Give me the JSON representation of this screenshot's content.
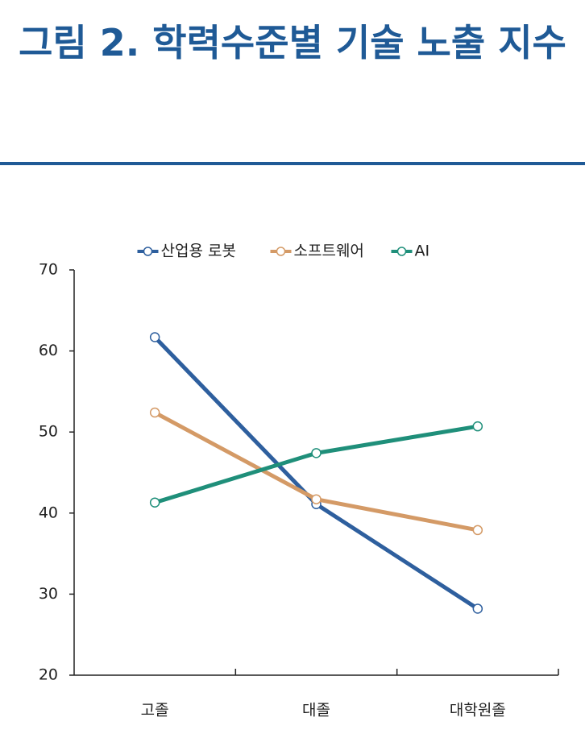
{
  "chart_data": {
    "type": "line",
    "title": "그림 2. 학력수준별 기술 노출 지수",
    "categories": [
      "고졸",
      "대졸",
      "대학원졸"
    ],
    "series": [
      {
        "name": "산업용 로봇",
        "color": "#2e5f9e",
        "values": [
          61.7,
          41.1,
          28.2
        ]
      },
      {
        "name": "소프트웨어",
        "color": "#d49a66",
        "values": [
          52.4,
          41.7,
          37.9
        ]
      },
      {
        "name": "AI",
        "color": "#1f8f7a",
        "values": [
          41.3,
          47.4,
          50.7
        ]
      }
    ],
    "ylim": [
      20,
      70
    ],
    "yticks": [
      20,
      30,
      40,
      50,
      60,
      70
    ],
    "grid": false,
    "legend": "top"
  }
}
